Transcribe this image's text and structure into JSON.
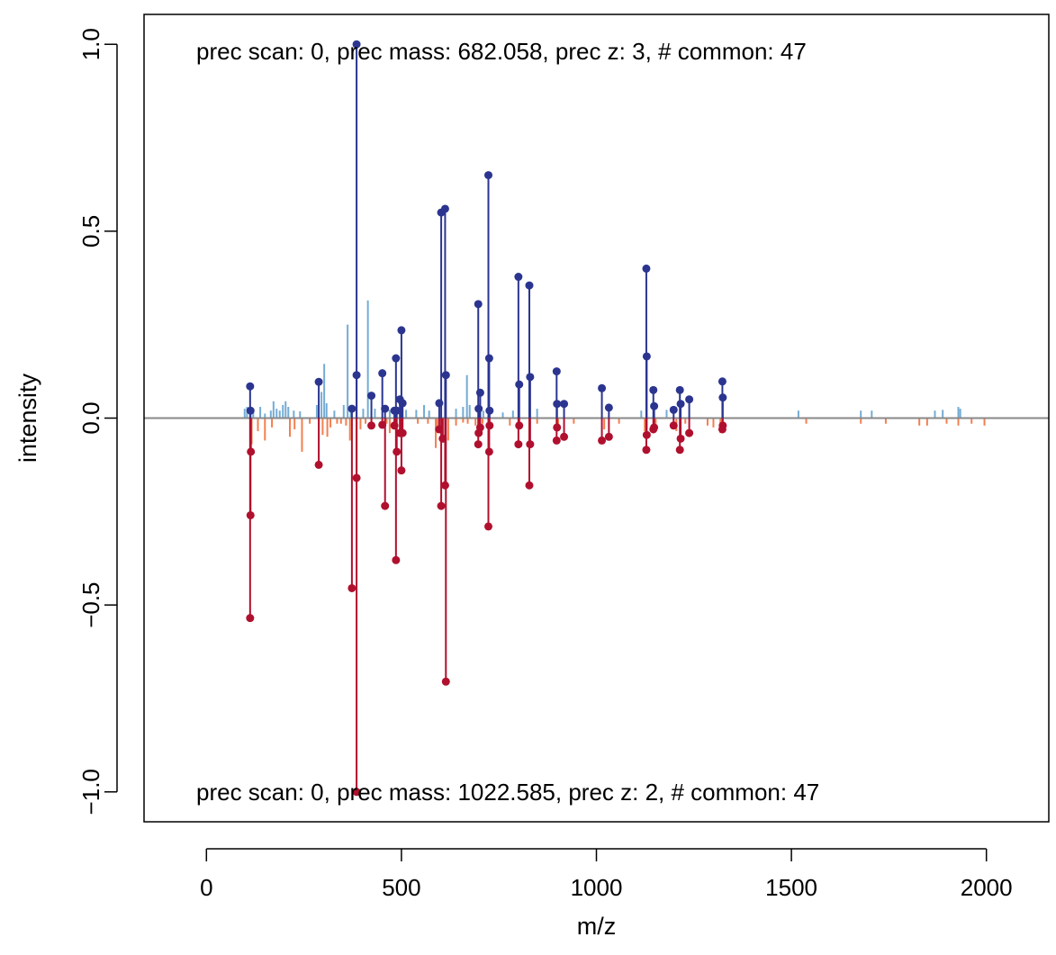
{
  "chart_data": {
    "type": "mirror-spectrum",
    "xlabel": "m/z",
    "ylabel": "intensity",
    "xlim": [
      -160,
      2160
    ],
    "ylim": [
      -1.08,
      1.08
    ],
    "x_ticks": [
      0,
      500,
      1000,
      1500,
      2000
    ],
    "y_ticks": [
      -1.0,
      -0.5,
      0.0,
      0.5,
      1.0
    ],
    "x_tick_labels": [
      "0",
      "500",
      "1000",
      "1500",
      "2000"
    ],
    "y_tick_labels": [
      "−1.0",
      "−0.5",
      "0.0",
      "0.5",
      "1.0"
    ],
    "top_annotation": "prec scan: 0, prec mass: 682.058, prec z: 3, # common: 47",
    "bottom_annotation": "prec scan: 0, prec mass: 1022.585, prec z: 2, # common: 47",
    "colors": {
      "top_matched": "#2b3590",
      "bottom_matched": "#b0102e",
      "top_unmatched": "#74acd4",
      "bottom_unmatched": "#f47f4f",
      "baseline": "#888888"
    },
    "top_matched": [
      [
        112,
        0.085
      ],
      [
        113,
        0.02
      ],
      [
        288,
        0.097
      ],
      [
        373,
        0.025
      ],
      [
        385,
        1.0
      ],
      [
        385,
        0.115
      ],
      [
        423,
        0.06
      ],
      [
        451,
        0.12
      ],
      [
        458,
        0.025
      ],
      [
        482,
        0.02
      ],
      [
        486,
        0.16
      ],
      [
        488,
        0.02
      ],
      [
        496,
        0.05
      ],
      [
        500,
        0.235
      ],
      [
        503,
        0.04
      ],
      [
        597,
        0.04
      ],
      [
        602,
        0.55
      ],
      [
        612,
        0.56
      ],
      [
        614,
        0.115
      ],
      [
        697,
        0.305
      ],
      [
        698,
        0.025
      ],
      [
        702,
        0.068
      ],
      [
        723,
        0.65
      ],
      [
        725,
        0.16
      ],
      [
        726,
        0.02
      ],
      [
        800,
        0.378
      ],
      [
        802,
        0.09
      ],
      [
        828,
        0.355
      ],
      [
        830,
        0.11
      ],
      [
        898,
        0.125
      ],
      [
        899,
        0.038
      ],
      [
        917,
        0.038
      ],
      [
        1014,
        0.08
      ],
      [
        1032,
        0.028
      ],
      [
        1128,
        0.4
      ],
      [
        1129,
        0.165
      ],
      [
        1146,
        0.075
      ],
      [
        1148,
        0.032
      ],
      [
        1198,
        0.022
      ],
      [
        1214,
        0.075
      ],
      [
        1216,
        0.038
      ],
      [
        1238,
        0.05
      ],
      [
        1323,
        0.098
      ],
      [
        1324,
        0.055
      ]
    ],
    "bottom_matched": [
      [
        112,
        -0.535
      ],
      [
        113,
        -0.26
      ],
      [
        114,
        -0.09
      ],
      [
        288,
        -0.125
      ],
      [
        373,
        -0.455
      ],
      [
        385,
        -1.0
      ],
      [
        385,
        -0.16
      ],
      [
        423,
        -0.02
      ],
      [
        451,
        -0.018
      ],
      [
        458,
        -0.235
      ],
      [
        482,
        -0.02
      ],
      [
        486,
        -0.38
      ],
      [
        488,
        -0.09
      ],
      [
        496,
        -0.04
      ],
      [
        500,
        -0.14
      ],
      [
        503,
        -0.04
      ],
      [
        597,
        -0.03
      ],
      [
        602,
        -0.235
      ],
      [
        606,
        -0.055
      ],
      [
        612,
        -0.18
      ],
      [
        614,
        -0.705
      ],
      [
        697,
        -0.07
      ],
      [
        698,
        -0.04
      ],
      [
        702,
        -0.025
      ],
      [
        723,
        -0.29
      ],
      [
        725,
        -0.09
      ],
      [
        726,
        -0.02
      ],
      [
        800,
        -0.07
      ],
      [
        802,
        -0.02
      ],
      [
        828,
        -0.18
      ],
      [
        830,
        -0.07
      ],
      [
        898,
        -0.06
      ],
      [
        899,
        -0.025
      ],
      [
        917,
        -0.05
      ],
      [
        1014,
        -0.06
      ],
      [
        1032,
        -0.05
      ],
      [
        1128,
        -0.085
      ],
      [
        1129,
        -0.045
      ],
      [
        1146,
        -0.03
      ],
      [
        1148,
        -0.025
      ],
      [
        1198,
        -0.02
      ],
      [
        1214,
        -0.085
      ],
      [
        1216,
        -0.055
      ],
      [
        1238,
        -0.04
      ],
      [
        1323,
        -0.03
      ],
      [
        1324,
        -0.02
      ]
    ],
    "top_unmatched": [
      [
        98,
        0.025
      ],
      [
        104,
        0.03
      ],
      [
        120,
        0.025
      ],
      [
        138,
        0.03
      ],
      [
        150,
        0.012
      ],
      [
        165,
        0.02
      ],
      [
        172,
        0.045
      ],
      [
        180,
        0.025
      ],
      [
        188,
        0.02
      ],
      [
        196,
        0.035
      ],
      [
        203,
        0.045
      ],
      [
        210,
        0.03
      ],
      [
        224,
        0.02
      ],
      [
        240,
        0.018
      ],
      [
        283,
        0.035
      ],
      [
        295,
        0.07
      ],
      [
        302,
        0.145
      ],
      [
        308,
        0.04
      ],
      [
        328,
        0.02
      ],
      [
        352,
        0.035
      ],
      [
        362,
        0.25
      ],
      [
        370,
        0.035
      ],
      [
        402,
        0.025
      ],
      [
        414,
        0.315
      ],
      [
        432,
        0.025
      ],
      [
        470,
        0.022
      ],
      [
        512,
        0.022
      ],
      [
        538,
        0.022
      ],
      [
        558,
        0.035
      ],
      [
        571,
        0.02
      ],
      [
        640,
        0.025
      ],
      [
        658,
        0.03
      ],
      [
        668,
        0.115
      ],
      [
        675,
        0.035
      ],
      [
        710,
        0.02
      ],
      [
        760,
        0.015
      ],
      [
        786,
        0.02
      ],
      [
        848,
        0.025
      ],
      [
        1115,
        0.02
      ],
      [
        1180,
        0.022
      ],
      [
        1518,
        0.02
      ],
      [
        1678,
        0.02
      ],
      [
        1706,
        0.02
      ],
      [
        1868,
        0.02
      ],
      [
        1888,
        0.022
      ],
      [
        1928,
        0.03
      ],
      [
        1933,
        0.025
      ]
    ],
    "bottom_unmatched": [
      [
        116,
        -0.07
      ],
      [
        132,
        -0.035
      ],
      [
        150,
        -0.06
      ],
      [
        168,
        -0.025
      ],
      [
        214,
        -0.05
      ],
      [
        226,
        -0.03
      ],
      [
        245,
        -0.09
      ],
      [
        265,
        -0.015
      ],
      [
        298,
        -0.045
      ],
      [
        310,
        -0.05
      ],
      [
        318,
        -0.025
      ],
      [
        335,
        -0.015
      ],
      [
        345,
        -0.015
      ],
      [
        358,
        -0.02
      ],
      [
        368,
        -0.06
      ],
      [
        395,
        -0.03
      ],
      [
        408,
        -0.015
      ],
      [
        462,
        -0.015
      ],
      [
        470,
        -0.04
      ],
      [
        542,
        -0.015
      ],
      [
        568,
        -0.015
      ],
      [
        588,
        -0.08
      ],
      [
        592,
        -0.04
      ],
      [
        620,
        -0.06
      ],
      [
        640,
        -0.02
      ],
      [
        658,
        -0.012
      ],
      [
        670,
        -0.015
      ],
      [
        690,
        -0.02
      ],
      [
        708,
        -0.015
      ],
      [
        778,
        -0.02
      ],
      [
        848,
        -0.015
      ],
      [
        902,
        -0.03
      ],
      [
        942,
        -0.015
      ],
      [
        1020,
        -0.03
      ],
      [
        1058,
        -0.015
      ],
      [
        1124,
        -0.035
      ],
      [
        1152,
        -0.015
      ],
      [
        1205,
        -0.035
      ],
      [
        1228,
        -0.015
      ],
      [
        1285,
        -0.02
      ],
      [
        1300,
        -0.025
      ],
      [
        1318,
        -0.04
      ],
      [
        1538,
        -0.015
      ],
      [
        1678,
        -0.015
      ],
      [
        1742,
        -0.015
      ],
      [
        1828,
        -0.02
      ],
      [
        1848,
        -0.02
      ],
      [
        1898,
        -0.015
      ],
      [
        1928,
        -0.02
      ],
      [
        1962,
        -0.015
      ],
      [
        1995,
        -0.02
      ]
    ]
  }
}
